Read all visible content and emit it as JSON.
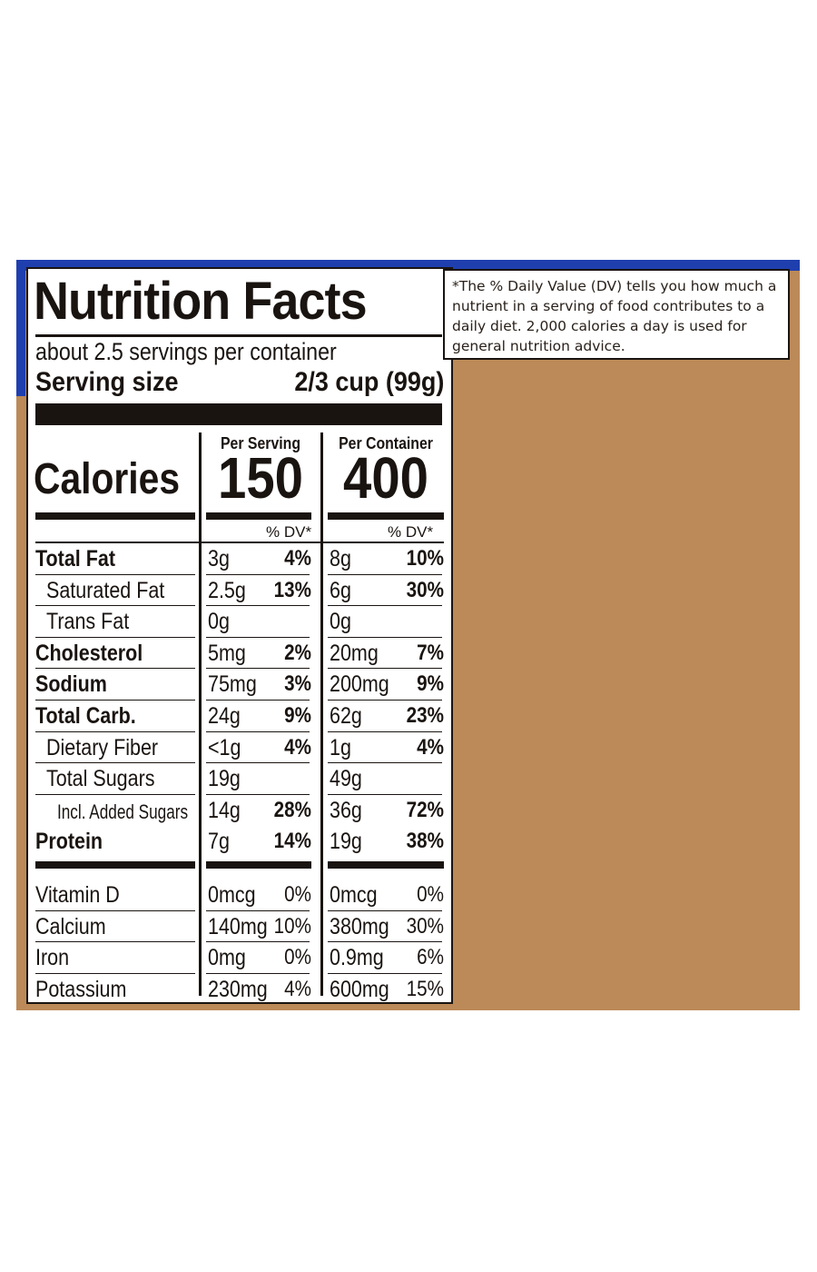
{
  "label": {
    "title": "Nutrition Facts",
    "servings_per_container": "about 2.5 servings per container",
    "serving_size_label": "Serving size",
    "serving_size_value": "2/3 cup (99g)",
    "calories_label": "Calories",
    "columns": [
      {
        "heading": "Per Serving",
        "calories": "150",
        "dv_heading": "% DV*"
      },
      {
        "heading": "Per Container",
        "calories": "400",
        "dv_heading": "% DV*"
      }
    ],
    "nutrients": [
      {
        "name": "Total Fat",
        "style": "bold",
        "serving": {
          "amount": "3g",
          "dv": "4%"
        },
        "container": {
          "amount": "8g",
          "dv": "10%"
        }
      },
      {
        "name": "Saturated Fat",
        "style": "indent",
        "serving": {
          "amount": "2.5g",
          "dv": "13%"
        },
        "container": {
          "amount": "6g",
          "dv": "30%"
        }
      },
      {
        "name": "Trans Fat",
        "style": "indent",
        "serving": {
          "amount": "0g",
          "dv": ""
        },
        "container": {
          "amount": "0g",
          "dv": ""
        }
      },
      {
        "name": "Cholesterol",
        "style": "bold",
        "serving": {
          "amount": "5mg",
          "dv": "2%"
        },
        "container": {
          "amount": "20mg",
          "dv": "7%"
        }
      },
      {
        "name": "Sodium",
        "style": "bold",
        "serving": {
          "amount": "75mg",
          "dv": "3%"
        },
        "container": {
          "amount": "200mg",
          "dv": "9%"
        }
      },
      {
        "name": "Total Carb.",
        "style": "bold",
        "serving": {
          "amount": "24g",
          "dv": "9%"
        },
        "container": {
          "amount": "62g",
          "dv": "23%"
        }
      },
      {
        "name": "Dietary Fiber",
        "style": "indent",
        "serving": {
          "amount": "<1g",
          "dv": "4%"
        },
        "container": {
          "amount": "1g",
          "dv": "4%"
        }
      },
      {
        "name": "Total Sugars",
        "style": "indent",
        "serving": {
          "amount": "19g",
          "dv": ""
        },
        "container": {
          "amount": "49g",
          "dv": ""
        }
      },
      {
        "name": "Incl. Added Sugars",
        "style": "indent2",
        "serving": {
          "amount": "14g",
          "dv": "28%"
        },
        "container": {
          "amount": "36g",
          "dv": "72%"
        }
      },
      {
        "name": "Protein",
        "style": "bold",
        "serving": {
          "amount": "7g",
          "dv": "14%"
        },
        "container": {
          "amount": "19g",
          "dv": "38%"
        }
      }
    ],
    "vitamins": [
      {
        "name": "Vitamin D",
        "serving": {
          "amount": "0mcg",
          "dv": "0%"
        },
        "container": {
          "amount": "0mcg",
          "dv": "0%"
        }
      },
      {
        "name": "Calcium",
        "serving": {
          "amount": "140mg",
          "dv": "10%"
        },
        "container": {
          "amount": "380mg",
          "dv": "30%"
        }
      },
      {
        "name": "Iron",
        "serving": {
          "amount": "0mg",
          "dv": "0%"
        },
        "container": {
          "amount": "0.9mg",
          "dv": "6%"
        }
      },
      {
        "name": "Potassium",
        "serving": {
          "amount": "230mg",
          "dv": "4%"
        },
        "container": {
          "amount": "600mg",
          "dv": "15%"
        }
      }
    ]
  },
  "footnote": {
    "text": "*The % Daily Value (DV) tells you how much a nutrient in a serving of food contributes to a daily diet. 2,000 calories a day is used for general nutrition advice."
  },
  "colors": {
    "package_background": "#bc8a58",
    "package_blue": "#1f3fae",
    "ink": "#1a1411"
  }
}
